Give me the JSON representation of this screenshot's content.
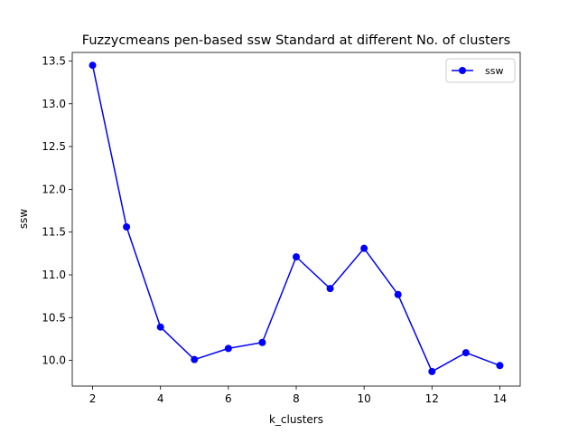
{
  "chart_data": {
    "type": "line",
    "title": "Fuzzycmeans pen-based ssw Standard at different No. of clusters",
    "xlabel": "k_clusters",
    "ylabel": "ssw",
    "xlim": [
      1.4,
      14.6
    ],
    "ylim": [
      9.7,
      13.6
    ],
    "xticks": [
      2,
      4,
      6,
      8,
      10,
      12,
      14
    ],
    "xtick_labels": [
      "2",
      "4",
      "6",
      "8",
      "10",
      "12",
      "14"
    ],
    "yticks": [
      10.0,
      10.5,
      11.0,
      11.5,
      12.0,
      12.5,
      13.0,
      13.5
    ],
    "ytick_labels": [
      "10.0",
      "10.5",
      "11.0",
      "11.5",
      "12.0",
      "12.5",
      "13.0",
      "13.5"
    ],
    "grid": false,
    "legend_position": "top-right",
    "series": [
      {
        "name": "ssw",
        "color": "#0000ff",
        "marker": "circle",
        "x": [
          2,
          3,
          4,
          5,
          6,
          7,
          8,
          9,
          10,
          11,
          12,
          13,
          14
        ],
        "y": [
          13.45,
          11.56,
          10.39,
          10.01,
          10.14,
          10.21,
          11.21,
          10.84,
          11.31,
          10.77,
          9.87,
          10.09,
          9.94
        ]
      }
    ]
  }
}
